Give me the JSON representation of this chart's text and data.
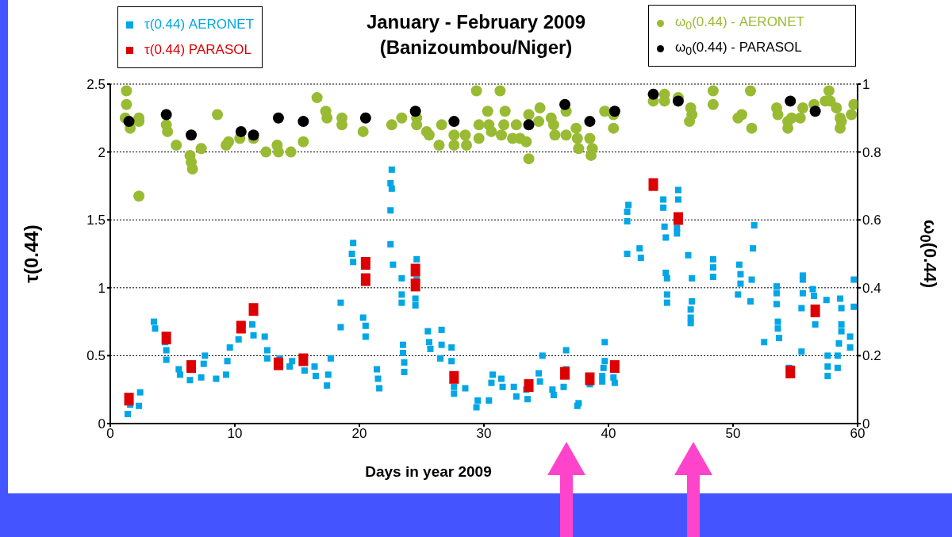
{
  "chart_data": {
    "type": "scatter",
    "title": "January - February 2009",
    "subtitle": "(Banizoumbou/Niger)",
    "xlabel": "Days in year 2009",
    "ylabel": "τ(0.44)",
    "y2label": "ω$_{0}$(0.44)",
    "xlim": [
      0,
      60
    ],
    "xticks": [
      0,
      10,
      20,
      30,
      40,
      50,
      60
    ],
    "ylim": [
      0,
      2.5
    ],
    "yticks": [
      0,
      0.5,
      1,
      1.5,
      2,
      2.5
    ],
    "y2lim": [
      0,
      1
    ],
    "y2ticks": [
      0,
      0.2,
      0.4,
      0.6,
      0.8,
      1
    ],
    "grid": "y",
    "legend": "top",
    "series": [
      {
        "name": "τ(0.44) AERONET",
        "color": "#00a6e6",
        "marker": "square",
        "x": [
          1.4,
          1.6,
          2.3,
          2.4,
          3.5,
          3.6,
          4.4,
          4.5,
          4.5,
          5.5,
          5.6,
          6.4,
          7.3,
          7.6,
          7.5,
          8.5,
          9.3,
          9.4,
          9.6,
          10.3,
          10.5,
          11.4,
          11.5,
          12.4,
          12.6,
          12.6,
          13.6,
          14.4,
          14.6,
          15.6,
          16.4,
          16.5,
          17.4,
          17.5,
          17.7,
          18.5,
          18.5,
          19.5,
          19.4,
          19.5,
          20.3,
          20.5,
          20.5,
          21.4,
          21.5,
          21.6,
          22.6,
          22.5,
          22.6,
          22.5,
          22.5,
          22.7,
          23.4,
          23.4,
          23.4,
          23.5,
          23.5,
          23.6,
          23.6,
          24.6,
          24.6,
          24.5,
          24.5,
          25.5,
          25.6,
          25.7,
          26.6,
          26.6,
          26.5,
          27.4,
          27.4,
          27.6,
          27.6,
          28.5,
          29.5,
          29.4,
          30.4,
          30.7,
          30.6,
          31.4,
          31.5,
          32.4,
          32.6,
          33.4,
          33.5,
          34.4,
          34.5,
          34.7,
          35.5,
          35.6,
          36.6,
          36.6,
          36.4,
          37.5,
          37.6,
          38.5,
          39.5,
          39.5,
          39.7,
          39.7,
          39.6,
          40.4,
          40.5,
          41.6,
          41.5,
          41.5,
          41.5,
          42.5,
          42.6,
          44.4,
          44.4,
          44.5,
          44.6,
          44.6,
          44.7,
          44.7,
          44.7,
          45.6,
          45.6,
          45.5,
          45.5,
          46.4,
          46.7,
          46.7,
          46.6,
          46.6,
          46.6,
          48.4,
          48.4,
          48.4,
          50.5,
          50.6,
          50.6,
          50.4,
          51.7,
          51.6,
          51.5,
          51.4,
          52.5,
          53.5,
          53.5,
          53.5,
          53.6,
          53.6,
          53.7,
          54.5,
          55.6,
          55.6,
          55.6,
          55.5,
          55.5,
          56.4,
          56.5,
          56.6,
          57.5,
          57.6,
          57.6,
          57.6,
          58.4,
          58.4,
          58.5,
          58.6,
          58.7,
          58.7,
          58.7,
          59.4,
          59.4,
          59.7,
          59.7
        ],
        "values": [
          0.07,
          0.14,
          0.13,
          0.23,
          0.75,
          0.7,
          0.6,
          0.54,
          0.47,
          0.4,
          0.36,
          0.32,
          0.34,
          0.5,
          0.44,
          0.33,
          0.36,
          0.46,
          0.56,
          0.62,
          null,
          0.73,
          0.65,
          0.64,
          0.54,
          0.48,
          0.48,
          0.42,
          0.46,
          0.39,
          0.42,
          0.35,
          0.28,
          0.36,
          0.48,
          0.71,
          0.89,
          1.33,
          1.25,
          1.19,
          0.78,
          0.72,
          0.64,
          0.4,
          0.33,
          0.26,
          1.87,
          1.77,
          1.73,
          1.57,
          1.32,
          1.17,
          1.07,
          0.95,
          0.89,
          0.58,
          0.52,
          0.45,
          0.38,
          1.21,
          1.06,
          0.92,
          0.87,
          0.68,
          0.6,
          0.55,
          0.69,
          0.58,
          0.48,
          0.56,
          0.46,
          0.27,
          0.22,
          0.26,
          0.17,
          0.12,
          0.17,
          0.36,
          0.3,
          0.33,
          0.27,
          0.27,
          0.2,
          0.25,
          0.18,
          0.37,
          0.31,
          0.5,
          0.25,
          0.21,
          0.54,
          0.4,
          0.27,
          0.13,
          0.15,
          0.29,
          0.35,
          0.31,
          0.6,
          0.46,
          0.41,
          0.34,
          0.3,
          1.61,
          1.56,
          1.49,
          1.25,
          1.29,
          1.22,
          1.65,
          1.59,
          1.45,
          1.37,
          1.11,
          1.07,
          0.95,
          0.89,
          1.72,
          1.65,
          1.44,
          1.4,
          1.24,
          1.07,
          0.9,
          0.84,
          0.78,
          0.74,
          1.21,
          1.15,
          1.08,
          1.17,
          1.1,
          1.03,
          0.95,
          1.46,
          1.29,
          1.06,
          0.9,
          0.6,
          1.01,
          0.96,
          0.88,
          0.75,
          0.7,
          0.63,
          0.41,
          1.09,
          1.06,
          0.96,
          0.85,
          0.53,
          0.99,
          0.94,
          0.73,
          0.91,
          0.5,
          0.42,
          0.35,
          0.5,
          0.41,
          0.59,
          0.92,
          0.85,
          0.73,
          0.68,
          0.64,
          0.56,
          1.06,
          0.86
        ]
      },
      {
        "name": "τ(0.44) PARASOL",
        "color": "#dd0000",
        "marker": "square",
        "x": [
          1.5,
          4.5,
          6.5,
          10.5,
          11.5,
          13.5,
          15.5,
          20.5,
          20.5,
          24.5,
          24.5,
          27.6,
          33.6,
          36.5,
          38.5,
          40.5,
          43.6,
          45.6,
          54.6,
          56.6
        ],
        "values": [
          0.18,
          0.63,
          0.42,
          0.71,
          0.84,
          0.44,
          0.47,
          1.18,
          1.06,
          1.13,
          1.02,
          0.34,
          0.28,
          0.37,
          0.33,
          0.42,
          1.76,
          1.51,
          0.38,
          0.83
        ]
      },
      {
        "name": "ω$_{0}$(0.44) - AERONET",
        "color": "#99bb33",
        "marker": "circle",
        "axis": "y2",
        "x": [
          1.3,
          1.3,
          1.2,
          1.6,
          2.3,
          2.3,
          2.3,
          4.5,
          4.6,
          5.3,
          6.4,
          6.5,
          6.6,
          7.3,
          8.6,
          9.3,
          9.5,
          10.4,
          10.5,
          11.5,
          12.5,
          13.4,
          13.5,
          14.5,
          15.5,
          16.6,
          17.3,
          17.4,
          18.6,
          18.6,
          20.3,
          22.6,
          23.4,
          24.6,
          24.6,
          25.4,
          25.6,
          26.4,
          26.6,
          27.6,
          27.6,
          28.5,
          28.6,
          29.4,
          29.6,
          29.6,
          30.3,
          30.4,
          30.6,
          31.3,
          31.4,
          31.7,
          31.6,
          32.3,
          32.6,
          32.9,
          33.4,
          33.6,
          33.6,
          34.5,
          34.4,
          35.4,
          35.6,
          35.7,
          36.6,
          36.6,
          37.4,
          37.5,
          37.6,
          38.5,
          38.6,
          38.7,
          39.7,
          40.4,
          40.4,
          43.6,
          44.5,
          44.5,
          45.6,
          46.6,
          46.7,
          46.5,
          48.4,
          48.4,
          50.4,
          50.7,
          51.4,
          51.5,
          53.5,
          53.6,
          54.4,
          54.4,
          54.7,
          55.4,
          55.6,
          56.5,
          57.4,
          57.7,
          57.8,
          58.3,
          58.6,
          58.7,
          58.6,
          59.5,
          59.7
        ],
        "values": [
          0.98,
          0.94,
          0.9,
          0.87,
          0.9,
          0.89,
          0.67,
          0.88,
          0.86,
          0.82,
          0.79,
          0.77,
          0.75,
          0.81,
          0.91,
          0.82,
          0.83,
          0.84,
          null,
          0.84,
          0.8,
          0.82,
          0.8,
          0.8,
          0.83,
          0.96,
          0.92,
          0.9,
          0.9,
          0.88,
          0.86,
          0.88,
          0.9,
          0.9,
          0.88,
          0.86,
          0.85,
          0.82,
          0.88,
          0.85,
          0.82,
          0.85,
          0.82,
          0.98,
          0.88,
          0.84,
          0.92,
          0.88,
          0.86,
          0.98,
          0.85,
          0.92,
          0.88,
          0.84,
          0.88,
          0.84,
          0.83,
          0.91,
          0.78,
          0.93,
          0.89,
          0.9,
          0.88,
          0.85,
          0.92,
          0.85,
          0.87,
          0.84,
          0.81,
          0.84,
          0.79,
          0.81,
          0.92,
          0.87,
          0.91,
          0.95,
          0.97,
          0.95,
          0.96,
          0.93,
          0.91,
          0.89,
          0.98,
          0.94,
          0.9,
          0.91,
          0.98,
          0.87,
          0.93,
          0.91,
          0.89,
          0.87,
          0.9,
          0.9,
          0.93,
          0.94,
          0.95,
          0.98,
          0.95,
          0.93,
          0.9,
          0.89,
          0.87,
          0.91,
          0.94
        ]
      },
      {
        "name": "ω$_{0}$(0.44) - PARASOL",
        "color": "#000000",
        "marker": "circle",
        "axis": "y2",
        "x": [
          1.5,
          4.5,
          6.5,
          10.5,
          11.5,
          13.5,
          15.5,
          20.5,
          24.5,
          27.6,
          33.6,
          36.5,
          38.5,
          40.5,
          43.6,
          45.6,
          54.6,
          56.6
        ],
        "values": [
          0.89,
          0.91,
          0.85,
          0.86,
          0.85,
          0.9,
          0.89,
          0.9,
          0.92,
          0.89,
          0.88,
          0.94,
          0.89,
          0.92,
          0.97,
          0.95,
          0.95,
          0.92
        ]
      }
    ]
  }
}
